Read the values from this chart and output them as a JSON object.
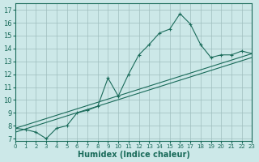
{
  "xlabel": "Humidex (Indice chaleur)",
  "background_color": "#cce8e8",
  "line_color": "#1a6b5a",
  "xlim": [
    0,
    23
  ],
  "ylim": [
    6.8,
    17.5
  ],
  "xticks": [
    0,
    1,
    2,
    3,
    4,
    5,
    6,
    7,
    8,
    9,
    10,
    11,
    12,
    13,
    14,
    15,
    16,
    17,
    18,
    19,
    20,
    21,
    22,
    23
  ],
  "yticks": [
    7,
    8,
    9,
    10,
    11,
    12,
    13,
    14,
    15,
    16,
    17
  ],
  "main_line_x": [
    0,
    1,
    2,
    3,
    4,
    5,
    6,
    7,
    8,
    9,
    10,
    11,
    12,
    13,
    14,
    15,
    16,
    17,
    18,
    19,
    20,
    21,
    22,
    23
  ],
  "main_line_y": [
    7.8,
    7.7,
    7.5,
    7.0,
    7.8,
    8.0,
    9.0,
    9.2,
    9.5,
    11.7,
    10.3,
    12.0,
    13.5,
    14.3,
    15.2,
    15.5,
    16.7,
    15.9,
    14.3,
    13.3,
    13.5,
    13.5,
    13.8,
    13.6
  ],
  "ref_line1_x": [
    0,
    23
  ],
  "ref_line1_y": [
    7.8,
    13.6
  ],
  "ref_line2_x": [
    0,
    23
  ],
  "ref_line2_y": [
    7.5,
    13.3
  ],
  "tick_fontsize": 6,
  "xlabel_fontsize": 7
}
